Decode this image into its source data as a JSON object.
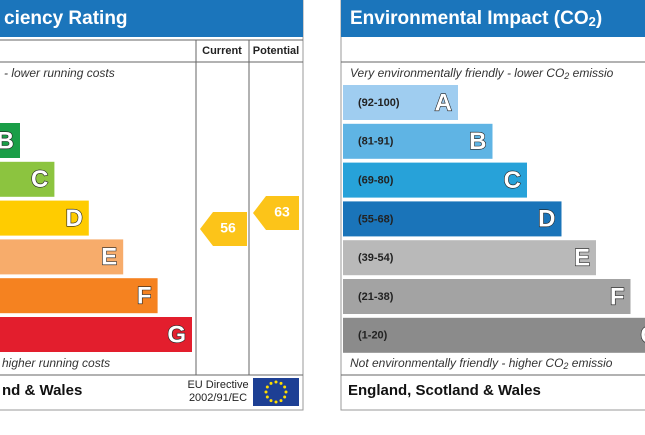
{
  "left": {
    "title": "ciency Rating",
    "header": {
      "current": "Current",
      "potential": "Potential"
    },
    "top_note": "- lower running costs",
    "bottom_note": "higher running costs",
    "bands": [
      "B",
      "C",
      "D",
      "E",
      "F",
      "G"
    ],
    "current": "56",
    "potential": "63",
    "footer": "nd & Wales",
    "directive": [
      "EU Directive",
      "2002/91/EC"
    ]
  },
  "right": {
    "title": [
      "Environmental Impact (CO",
      "2",
      ")"
    ],
    "top_note": [
      "Very environmentally friendly - lower CO",
      "2",
      " emissio"
    ],
    "bottom_note": [
      "Not environmentally friendly - higher CO",
      "2",
      " emissio"
    ],
    "bands": [
      {
        "range": "(92-100)",
        "letter": "A"
      },
      {
        "range": "(81-91)",
        "letter": "B"
      },
      {
        "range": "(69-80)",
        "letter": "C"
      },
      {
        "range": "(55-68)",
        "letter": "D"
      },
      {
        "range": "(39-54)",
        "letter": "E"
      },
      {
        "range": "(21-38)",
        "letter": "F"
      },
      {
        "range": "(1-20)",
        "letter": "G"
      }
    ],
    "footer": "England, Scotland & Wales"
  }
}
